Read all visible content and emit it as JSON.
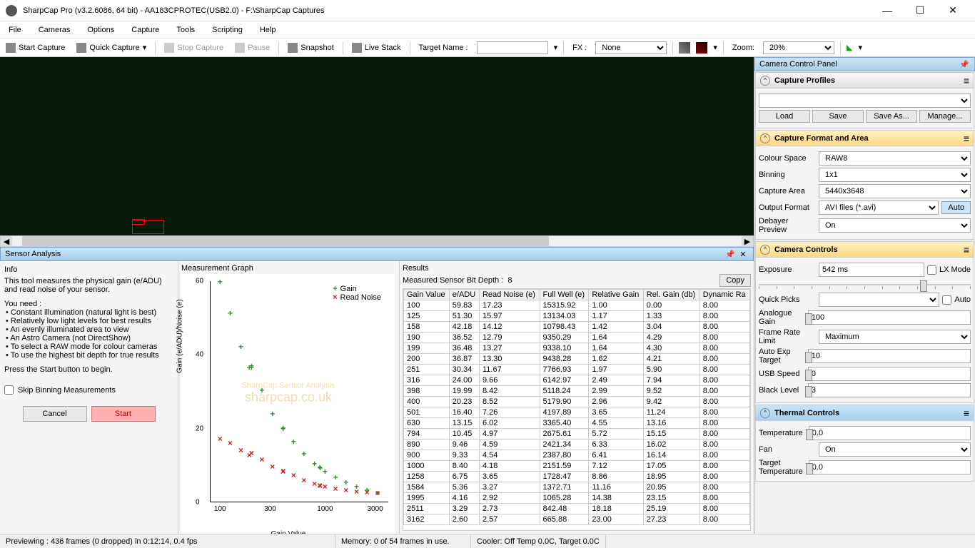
{
  "window": {
    "title": "SharpCap Pro (v3.2.6086, 64 bit) - AA183CPROTEC(USB2.0) - F:\\SharpCap Captures"
  },
  "menu": [
    "File",
    "Cameras",
    "Options",
    "Capture",
    "Tools",
    "Scripting",
    "Help"
  ],
  "toolbar": {
    "start_capture": "Start Capture",
    "quick_capture": "Quick Capture",
    "stop_capture": "Stop Capture",
    "pause": "Pause",
    "snapshot": "Snapshot",
    "live_stack": "Live Stack",
    "target_name_lbl": "Target Name :",
    "target_name_val": "",
    "fx_lbl": "FX :",
    "fx_val": "None",
    "zoom_lbl": "Zoom:",
    "zoom_val": "20%"
  },
  "sensor_panel": {
    "title": "Sensor Analysis",
    "info_hdr": "Info",
    "info_desc": "This tool measures the physical gain (e/ADU) and read noise of your sensor.",
    "need_hdr": "You need :",
    "needs": [
      "Constant illumination (natural light is best)",
      "Relatively low light levels for best results",
      "An evenly illuminated area to view",
      "An Astro Camera (not DirectShow)",
      "To select a RAW mode for colour cameras",
      "To use the highest bit depth for true results"
    ],
    "press_start": "Press the Start button to begin.",
    "skip_binning": "Skip Binning Measurements",
    "cancel": "Cancel",
    "start": "Start",
    "graph_hdr": "Measurement Graph",
    "results_hdr": "Results",
    "bit_depth_lbl": "Measured Sensor Bit Depth :",
    "bit_depth_val": "8",
    "copy": "Copy",
    "chart": {
      "ylabel": "Gain (e/ADU)/Noise (e)",
      "xlabel": "Gain Value",
      "yticks": [
        0,
        20,
        40,
        60
      ],
      "xticks": [
        100,
        300,
        1000,
        3000
      ],
      "legend_gain": "Gain",
      "legend_noise": "Read Noise",
      "gain_color": "#2e8b2e",
      "noise_color": "#d02020",
      "watermark1": "SharpCap Sensor Analysis",
      "watermark2": "sharpcap.co.uk",
      "gain_pts": [
        [
          100,
          59.8
        ],
        [
          125,
          51.3
        ],
        [
          158,
          42.2
        ],
        [
          190,
          36.5
        ],
        [
          199,
          36.5
        ],
        [
          200,
          36.9
        ],
        [
          251,
          30.3
        ],
        [
          316,
          24.0
        ],
        [
          398,
          20.0
        ],
        [
          400,
          20.2
        ],
        [
          501,
          16.4
        ],
        [
          630,
          13.2
        ],
        [
          794,
          10.5
        ],
        [
          890,
          9.5
        ],
        [
          900,
          9.3
        ],
        [
          1000,
          8.4
        ],
        [
          1258,
          6.8
        ],
        [
          1584,
          5.4
        ],
        [
          1995,
          4.2
        ],
        [
          2511,
          3.3
        ],
        [
          3162,
          2.6
        ]
      ],
      "noise_pts": [
        [
          100,
          17.2
        ],
        [
          125,
          16.0
        ],
        [
          158,
          14.1
        ],
        [
          190,
          12.8
        ],
        [
          199,
          13.3
        ],
        [
          200,
          13.3
        ],
        [
          251,
          11.7
        ],
        [
          316,
          9.7
        ],
        [
          398,
          8.4
        ],
        [
          400,
          8.5
        ],
        [
          501,
          7.3
        ],
        [
          630,
          6.0
        ],
        [
          794,
          5.0
        ],
        [
          890,
          4.6
        ],
        [
          900,
          4.5
        ],
        [
          1000,
          4.2
        ],
        [
          1258,
          3.7
        ],
        [
          1584,
          3.3
        ],
        [
          1995,
          2.9
        ],
        [
          2511,
          2.7
        ],
        [
          3162,
          2.6
        ]
      ]
    },
    "table": {
      "cols": [
        "Gain Value",
        "e/ADU",
        "Read Noise (e)",
        "Full Well (e)",
        "Relative Gain",
        "Rel. Gain (db)",
        "Dynamic Ra"
      ],
      "rows": [
        [
          "100",
          "59.83",
          "17.23",
          "15315.92",
          "1.00",
          "0.00",
          "8.00"
        ],
        [
          "125",
          "51.30",
          "15.97",
          "13134.03",
          "1.17",
          "1.33",
          "8.00"
        ],
        [
          "158",
          "42.18",
          "14.12",
          "10798.43",
          "1.42",
          "3.04",
          "8.00"
        ],
        [
          "190",
          "36.52",
          "12.79",
          "9350.29",
          "1.64",
          "4.29",
          "8.00"
        ],
        [
          "199",
          "36.48",
          "13.27",
          "9338.10",
          "1.64",
          "4.30",
          "8.00"
        ],
        [
          "200",
          "36.87",
          "13.30",
          "9438.28",
          "1.62",
          "4.21",
          "8.00"
        ],
        [
          "251",
          "30.34",
          "11.67",
          "7766.93",
          "1.97",
          "5.90",
          "8.00"
        ],
        [
          "316",
          "24.00",
          "9.66",
          "6142.97",
          "2.49",
          "7.94",
          "8.00"
        ],
        [
          "398",
          "19.99",
          "8.42",
          "5118.24",
          "2.99",
          "9.52",
          "8.00"
        ],
        [
          "400",
          "20.23",
          "8.52",
          "5179.90",
          "2.96",
          "9.42",
          "8.00"
        ],
        [
          "501",
          "16.40",
          "7.26",
          "4197.89",
          "3.65",
          "11.24",
          "8.00"
        ],
        [
          "630",
          "13.15",
          "6.02",
          "3365.40",
          "4.55",
          "13.16",
          "8.00"
        ],
        [
          "794",
          "10.45",
          "4.97",
          "2675.61",
          "5.72",
          "15.15",
          "8.00"
        ],
        [
          "890",
          "9.46",
          "4.59",
          "2421.34",
          "6.33",
          "16.02",
          "8.00"
        ],
        [
          "900",
          "9.33",
          "4.54",
          "2387.80",
          "6.41",
          "16.14",
          "8.00"
        ],
        [
          "1000",
          "8.40",
          "4.18",
          "2151.59",
          "7.12",
          "17.05",
          "8.00"
        ],
        [
          "1258",
          "6.75",
          "3.65",
          "1728.47",
          "8.86",
          "18.95",
          "8.00"
        ],
        [
          "1584",
          "5.36",
          "3.27",
          "1372.71",
          "11.16",
          "20.95",
          "8.00"
        ],
        [
          "1995",
          "4.16",
          "2.92",
          "1065.28",
          "14.38",
          "23.15",
          "8.00"
        ],
        [
          "2511",
          "3.29",
          "2.73",
          "842.48",
          "18.18",
          "25.19",
          "8.00"
        ],
        [
          "3162",
          "2.60",
          "2.57",
          "665.88",
          "23.00",
          "27.23",
          "8.00"
        ]
      ]
    }
  },
  "camera_panel": {
    "title": "Camera Control Panel",
    "profiles": {
      "title": "Capture Profiles",
      "load": "Load",
      "save": "Save",
      "saveas": "Save As...",
      "manage": "Manage..."
    },
    "format": {
      "title": "Capture Format and Area",
      "colour_space_lbl": "Colour Space",
      "colour_space": "RAW8",
      "binning_lbl": "Binning",
      "binning": "1x1",
      "capture_area_lbl": "Capture Area",
      "capture_area": "5440x3648",
      "output_fmt_lbl": "Output Format",
      "output_fmt": "AVI files (*.avi)",
      "auto": "Auto",
      "debayer_lbl": "Debayer Preview",
      "debayer": "On"
    },
    "controls": {
      "title": "Camera Controls",
      "exposure_lbl": "Exposure",
      "exposure": "542 ms",
      "lx": "LX Mode",
      "quick_picks_lbl": "Quick Picks",
      "auto": "Auto",
      "analogue_gain_lbl": "Analogue Gain",
      "analogue_gain": "100",
      "frame_rate_lbl": "Frame Rate Limit",
      "frame_rate": "Maximum",
      "auto_exp_lbl": "Auto Exp Target",
      "auto_exp": "10",
      "usb_lbl": "USB Speed",
      "usb": "0",
      "black_lbl": "Black Level",
      "black": "3"
    },
    "thermal": {
      "title": "Thermal Controls",
      "temp_lbl": "Temperature",
      "temp": "0.0",
      "fan_lbl": "Fan",
      "fan": "On",
      "target_lbl": "Target Temperature",
      "target": "0.0"
    }
  },
  "status": {
    "preview": "Previewing : 436 frames (0 dropped) in 0:12:14, 0.4 fps",
    "memory": "Memory: 0 of 54 frames in use.",
    "cooler": "Cooler: Off Temp 0.0C, Target 0.0C"
  }
}
